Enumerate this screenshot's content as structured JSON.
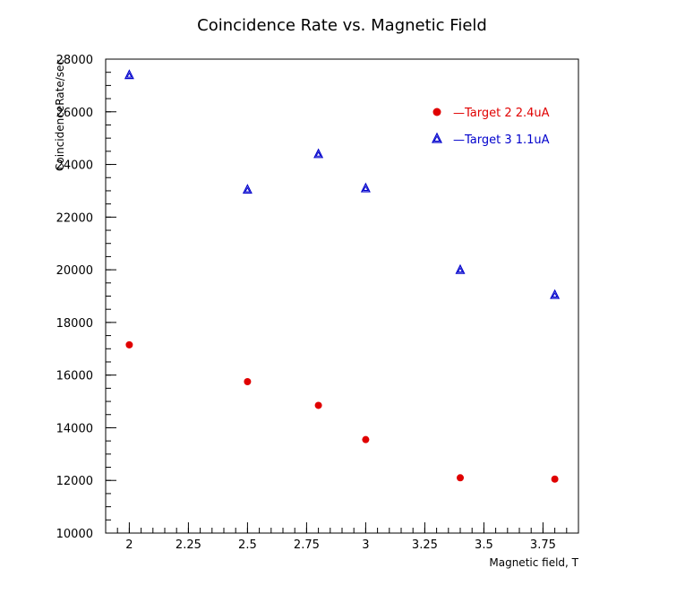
{
  "chart_data": {
    "type": "scatter",
    "title": "Coincidence Rate vs. Magnetic Field",
    "xlabel": "Magnetic field, T",
    "ylabel": "CoincidenceRate/sec",
    "xlim": [
      1.9,
      3.9
    ],
    "ylim": [
      10000,
      28000
    ],
    "x_ticks": [
      2,
      2.25,
      2.5,
      2.75,
      3,
      3.25,
      3.5,
      3.75
    ],
    "x_tick_labels": [
      "2",
      "2.25",
      "2.5",
      "2.75",
      "3",
      "3.25",
      "3.5",
      "3.75"
    ],
    "y_ticks": [
      10000,
      12000,
      14000,
      16000,
      18000,
      20000,
      22000,
      24000,
      26000,
      28000
    ],
    "y_tick_labels": [
      "10000",
      "12000",
      "14000",
      "16000",
      "18000",
      "20000",
      "22000",
      "24000",
      "26000",
      "28000"
    ],
    "grid": false,
    "legend_position": "top-right",
    "series": [
      {
        "name": "—Target 2 2.4uA",
        "color": "#e00000",
        "marker": "circle",
        "x": [
          2.0,
          2.5,
          2.8,
          3.0,
          3.4,
          3.8
        ],
        "y": [
          17150,
          15750,
          14850,
          13550,
          12100,
          12050
        ]
      },
      {
        "name": "—Target 3 1.1uA",
        "color": "#0000cc",
        "marker": "triangle",
        "x": [
          2.0,
          2.5,
          2.8,
          3.0,
          3.4,
          3.8
        ],
        "y": [
          27400,
          23050,
          24400,
          23100,
          20000,
          19050
        ]
      }
    ]
  }
}
